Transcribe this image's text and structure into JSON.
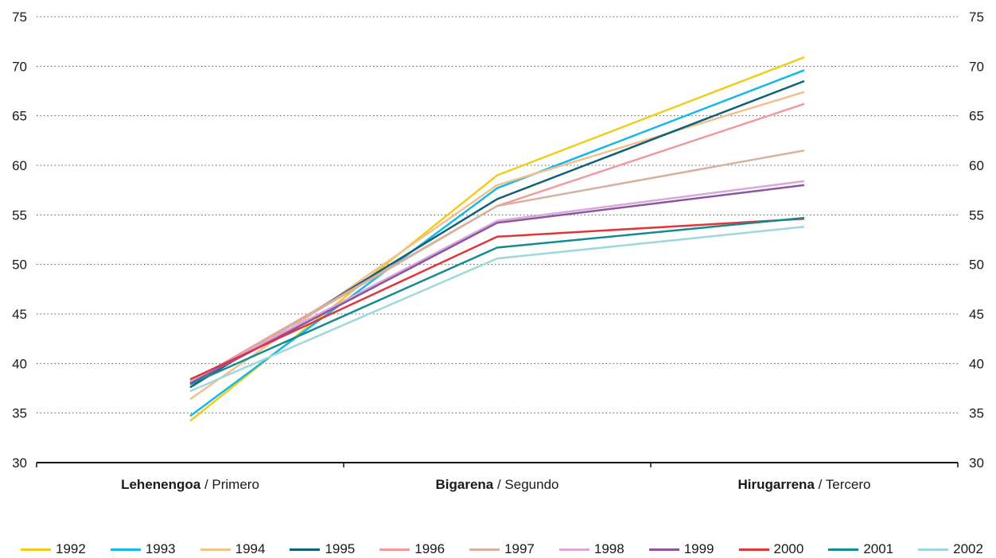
{
  "chart_data": {
    "type": "line",
    "categories": [
      {
        "bold": "Lehenengoa",
        "rest": " / Primero"
      },
      {
        "bold": "Bigarena",
        "rest": " / Segundo"
      },
      {
        "bold": "Hirugarrena",
        "rest": " / Tercero"
      }
    ],
    "ylim": [
      30,
      75
    ],
    "yticks": [
      30,
      35,
      40,
      45,
      50,
      55,
      60,
      65,
      70,
      75
    ],
    "grid": true,
    "legend_position": "bottom",
    "series": [
      {
        "name": "1992",
        "color": "#f2cc1b",
        "values": [
          34.2,
          59.0,
          70.9
        ]
      },
      {
        "name": "1993",
        "color": "#15b9e8",
        "values": [
          34.7,
          57.7,
          69.6
        ]
      },
      {
        "name": "1994",
        "color": "#f5bf8c",
        "values": [
          36.4,
          58.0,
          67.4
        ]
      },
      {
        "name": "1995",
        "color": "#0d6178",
        "values": [
          37.6,
          56.6,
          68.5
        ]
      },
      {
        "name": "1996",
        "color": "#ef9a9c",
        "values": [
          38.1,
          55.9,
          66.2
        ]
      },
      {
        "name": "1997",
        "color": "#d4b29e",
        "values": [
          37.9,
          55.9,
          61.5
        ]
      },
      {
        "name": "1998",
        "color": "#d7a8d9",
        "values": [
          38.2,
          54.4,
          58.4
        ]
      },
      {
        "name": "1999",
        "color": "#8a56a0",
        "values": [
          38.0,
          54.2,
          58.0
        ]
      },
      {
        "name": "2000",
        "color": "#e0353b",
        "values": [
          38.4,
          52.8,
          54.6
        ]
      },
      {
        "name": "2001",
        "color": "#138b93",
        "values": [
          37.9,
          51.7,
          54.7
        ]
      },
      {
        "name": "2002",
        "color": "#9fd8dc",
        "values": [
          37.2,
          50.6,
          53.8
        ]
      }
    ]
  }
}
